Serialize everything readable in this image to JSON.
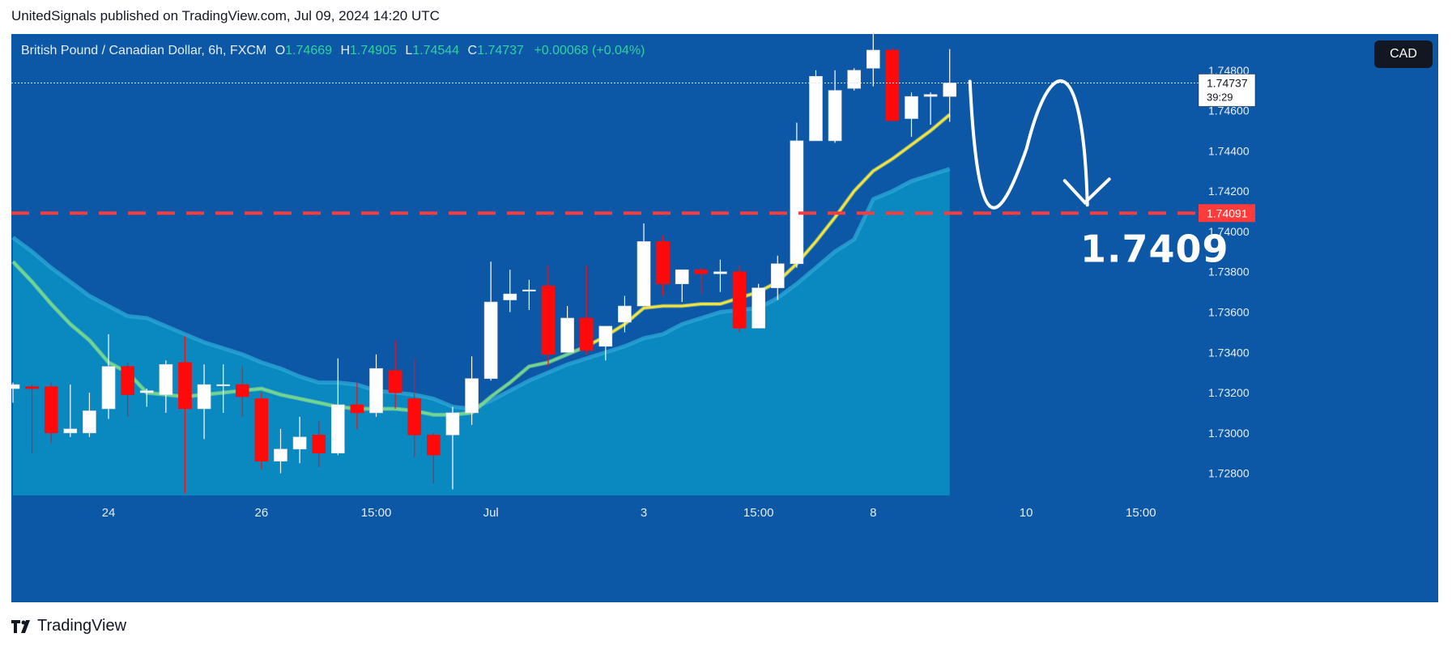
{
  "publisher_line": "UnitedSignals published on TradingView.com, Jul 09, 2024 14:20 UTC",
  "brand": "TradingView",
  "header": {
    "symbol": "British Pound / Canadian Dollar, 6h, FXCM",
    "open_label": "O",
    "open": "1.74669",
    "high_label": "H",
    "high": "1.74905",
    "low_label": "L",
    "low": "1.74544",
    "close_label": "C",
    "close": "1.74737",
    "change": "+0.00068 (+0.04%)"
  },
  "currency_button": "CAD",
  "colors": {
    "background": "#0c57a6",
    "up": "#ffffff",
    "down": "#ff0a0a",
    "fast_ma": "#f7e13b",
    "slow_ma": "#6fd88f",
    "area": "#0a8fc4",
    "level": "#ff3b3b",
    "value_green": "#2fd3a0"
  },
  "chart_data": {
    "type": "candlestick",
    "symbol": "GBPCAD",
    "timeframe": "6h",
    "y_ticks": [
      1.728,
      1.73,
      1.732,
      1.734,
      1.736,
      1.738,
      1.74,
      1.742,
      1.744,
      1.746,
      1.748
    ],
    "y_tick_labels": [
      "1.72800",
      "1.73000",
      "1.73200",
      "1.73400",
      "1.73600",
      "1.73800",
      "1.74000",
      "1.74200",
      "1.74400",
      "1.74600",
      "1.74800"
    ],
    "ylim": [
      1.7269,
      1.7498
    ],
    "x_labels": [
      {
        "label": "24",
        "bar": 5
      },
      {
        "label": "26",
        "bar": 13
      },
      {
        "label": "15:00",
        "bar": 19
      },
      {
        "label": "Jul",
        "bar": 25
      },
      {
        "label": "3",
        "bar": 33
      },
      {
        "label": "15:00",
        "bar": 39
      },
      {
        "label": "8",
        "bar": 45
      },
      {
        "label": "10",
        "bar": 53
      },
      {
        "label": "15:00",
        "bar": 59
      }
    ],
    "total_slots": 61,
    "candles": [
      [
        1.7322,
        1.7324,
        1.7315,
        1.7325
      ],
      [
        1.7323,
        1.7322,
        1.729,
        1.7324
      ],
      [
        1.7323,
        1.73,
        1.7295,
        1.7325
      ],
      [
        1.73,
        1.7302,
        1.7298,
        1.7324
      ],
      [
        1.73,
        1.7311,
        1.7298,
        1.732
      ],
      [
        1.7312,
        1.7333,
        1.7307,
        1.7349
      ],
      [
        1.7333,
        1.7319,
        1.7308,
        1.7335
      ],
      [
        1.732,
        1.7321,
        1.7313,
        1.7322
      ],
      [
        1.7319,
        1.7334,
        1.731,
        1.7336
      ],
      [
        1.7335,
        1.7312,
        1.727,
        1.7348
      ],
      [
        1.7312,
        1.7324,
        1.7297,
        1.7334
      ],
      [
        1.7324,
        1.7324,
        1.731,
        1.7334
      ],
      [
        1.7324,
        1.7318,
        1.7308,
        1.7333
      ],
      [
        1.7317,
        1.7286,
        1.7282,
        1.732
      ],
      [
        1.7286,
        1.7292,
        1.728,
        1.7302
      ],
      [
        1.7292,
        1.7298,
        1.7285,
        1.7308
      ],
      [
        1.7299,
        1.729,
        1.7283,
        1.7306
      ],
      [
        1.729,
        1.7314,
        1.7289,
        1.7337
      ],
      [
        1.7314,
        1.731,
        1.7302,
        1.7325
      ],
      [
        1.731,
        1.7332,
        1.7308,
        1.7339
      ],
      [
        1.7331,
        1.732,
        1.7312,
        1.7346
      ],
      [
        1.7317,
        1.7299,
        1.7288,
        1.7337
      ],
      [
        1.7299,
        1.7289,
        1.7275,
        1.73
      ],
      [
        1.7299,
        1.731,
        1.7272,
        1.7313
      ],
      [
        1.731,
        1.7327,
        1.7304,
        1.7338
      ],
      [
        1.7327,
        1.7365,
        1.7326,
        1.7385
      ],
      [
        1.7366,
        1.7369,
        1.736,
        1.7381
      ],
      [
        1.7371,
        1.7371,
        1.7361,
        1.7376
      ],
      [
        1.7373,
        1.7339,
        1.7333,
        1.7383
      ],
      [
        1.734,
        1.7357,
        1.7341,
        1.7363
      ],
      [
        1.7357,
        1.7341,
        1.7339,
        1.7383
      ],
      [
        1.7343,
        1.7353,
        1.7336,
        1.7353
      ],
      [
        1.7355,
        1.7363,
        1.735,
        1.7368
      ],
      [
        1.7363,
        1.7395,
        1.7363,
        1.7404
      ],
      [
        1.7395,
        1.7374,
        1.7368,
        1.7398
      ],
      [
        1.7374,
        1.7381,
        1.7365,
        1.7381
      ],
      [
        1.7381,
        1.7379,
        1.7369,
        1.7382
      ],
      [
        1.7379,
        1.738,
        1.737,
        1.7386
      ],
      [
        1.738,
        1.7352,
        1.735,
        1.7383
      ],
      [
        1.7352,
        1.7372,
        1.7352,
        1.7374
      ],
      [
        1.7372,
        1.7384,
        1.7366,
        1.7388
      ],
      [
        1.7384,
        1.7445,
        1.7382,
        1.7454
      ],
      [
        1.7445,
        1.7477,
        1.7445,
        1.748
      ],
      [
        1.7445,
        1.747,
        1.7444,
        1.748
      ],
      [
        1.7471,
        1.748,
        1.747,
        1.7481
      ],
      [
        1.7481,
        1.749,
        1.7472,
        1.7498
      ],
      [
        1.749,
        1.7455,
        1.7455,
        1.7491
      ],
      [
        1.7456,
        1.7467,
        1.7447,
        1.7469
      ],
      [
        1.7467,
        1.7468,
        1.7453,
        1.7469
      ],
      [
        1.7467,
        1.74737,
        1.74544,
        1.74905
      ]
    ],
    "fast_ma": [
      1.7385,
      1.7375,
      1.7364,
      1.7354,
      1.7346,
      1.7335,
      1.733,
      1.732,
      1.7319,
      1.7318,
      1.7319,
      1.732,
      1.7321,
      1.7322,
      1.7319,
      1.7317,
      1.7315,
      1.7313,
      1.7312,
      1.7312,
      1.7312,
      1.7311,
      1.7309,
      1.7309,
      1.731,
      1.7318,
      1.7325,
      1.7333,
      1.7335,
      1.7339,
      1.7343,
      1.7348,
      1.7354,
      1.7362,
      1.7363,
      1.7363,
      1.7364,
      1.7364,
      1.7367,
      1.737,
      1.7375,
      1.7384,
      1.7395,
      1.7407,
      1.742,
      1.743,
      1.7436,
      1.7443,
      1.745,
      1.7458
    ],
    "slow_ma": [
      1.7397,
      1.739,
      1.7382,
      1.7375,
      1.7368,
      1.7363,
      1.7358,
      1.7357,
      1.7353,
      1.7349,
      1.7345,
      1.7342,
      1.7339,
      1.7335,
      1.7332,
      1.7328,
      1.7325,
      1.7325,
      1.7324,
      1.7321,
      1.732,
      1.7319,
      1.7317,
      1.7313,
      1.7312,
      1.7316,
      1.7321,
      1.7326,
      1.733,
      1.7334,
      1.7337,
      1.734,
      1.7343,
      1.7347,
      1.7349,
      1.7354,
      1.7357,
      1.736,
      1.7361,
      1.7362,
      1.7367,
      1.7374,
      1.7382,
      1.739,
      1.7396,
      1.7416,
      1.742,
      1.7425,
      1.7428,
      1.7431
    ],
    "level": 1.74091,
    "level_label": "1.74091",
    "level_annotation": "1.7409",
    "last_price": 1.74737,
    "last_price_label": "1.74737",
    "countdown": "39:29"
  }
}
